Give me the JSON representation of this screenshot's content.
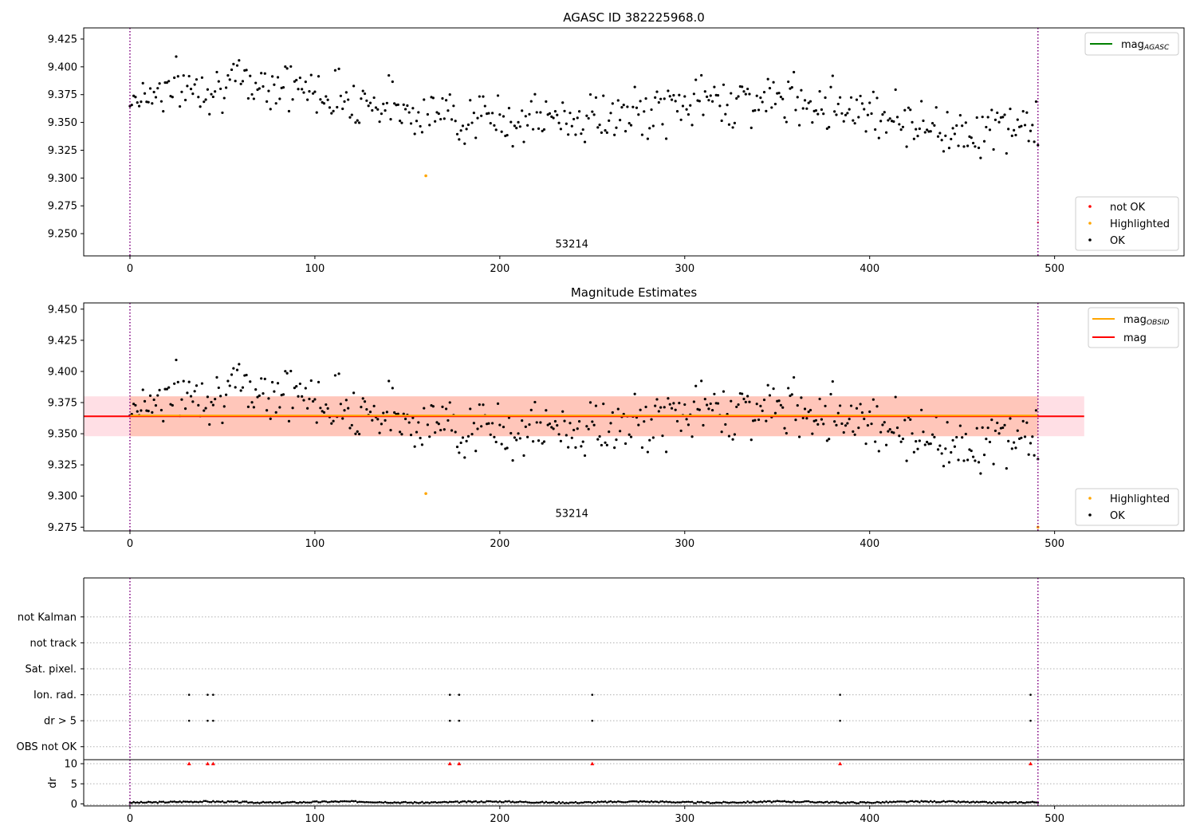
{
  "figure": {
    "panel1_title": "AGASC ID 382225968.0",
    "panel2_title": "Magnitude Estimates"
  },
  "chart_data": [
    {
      "type": "scatter",
      "title": "AGASC ID 382225968.0",
      "xlim": [
        -25,
        570
      ],
      "ylim": [
        9.23,
        9.435
      ],
      "xticks": [
        0,
        100,
        200,
        300,
        400,
        500
      ],
      "yticks": [
        9.25,
        9.275,
        9.3,
        9.325,
        9.35,
        9.375,
        9.4,
        9.425
      ],
      "vlines": [
        0,
        491
      ],
      "annotation": {
        "x": 245,
        "y": 9.236,
        "text": "53214"
      },
      "legend_lines": [
        {
          "label": "mag",
          "sub": "AGASC",
          "color": "#008000"
        }
      ],
      "legend_points": [
        {
          "label": "not OK",
          "color": "#ff0000"
        },
        {
          "label": "Highlighted",
          "color": "#ffa500"
        },
        {
          "label": "OK",
          "color": "#000000"
        }
      ],
      "highlighted": [
        {
          "x": 160,
          "y": 9.302
        }
      ],
      "not_ok": [
        {
          "x": 491,
          "y": 9.26
        }
      ]
    },
    {
      "type": "scatter",
      "title": "Magnitude Estimates",
      "xlim": [
        -25,
        570
      ],
      "ylim": [
        9.272,
        9.455
      ],
      "xticks": [
        0,
        100,
        200,
        300,
        400,
        500
      ],
      "yticks": [
        9.275,
        9.3,
        9.325,
        9.35,
        9.375,
        9.4,
        9.425,
        9.45
      ],
      "vlines": [
        0,
        491
      ],
      "annotation": {
        "x": 245,
        "y": 9.278,
        "text": "53214"
      },
      "mag_line": {
        "y": 9.364,
        "x0": -25,
        "x1": 516,
        "color": "#ff0000"
      },
      "mag_band": {
        "y0": 9.348,
        "y1": 9.38,
        "x0": -25,
        "x1": 516,
        "color": "#ffc0cb"
      },
      "mag_obsid_line": {
        "y": 9.364,
        "x0": 0,
        "x1": 491,
        "color": "#ffa500"
      },
      "mag_obsid_band": {
        "y0": 9.348,
        "y1": 9.38,
        "x0": 0,
        "x1": 491,
        "color": "#ffa07a"
      },
      "legend_lines": [
        {
          "label": "mag",
          "sub": "OBSID",
          "color": "#ffa500"
        },
        {
          "label": "mag",
          "sub": "",
          "color": "#ff0000"
        }
      ],
      "legend_points": [
        {
          "label": "Highlighted",
          "color": "#ffa500"
        },
        {
          "label": "OK",
          "color": "#000000"
        }
      ],
      "highlighted": [
        {
          "x": 160,
          "y": 9.302
        },
        {
          "x": 491,
          "y": 9.275
        }
      ]
    },
    {
      "type": "scatter",
      "title": "",
      "xlim": [
        -25,
        570
      ],
      "ylim": [
        -0.5,
        6.5
      ],
      "categories": [
        "OBS not OK",
        "dr > 5",
        "Ion. rad.",
        "Sat. pixel.",
        "not track",
        "not Kalman"
      ],
      "vlines": [
        0,
        491
      ],
      "flags": {
        "dr > 5": [
          32,
          42,
          45,
          173,
          178,
          250,
          384,
          487
        ],
        "Ion. rad.": [
          32,
          42,
          45,
          173,
          178,
          250,
          384,
          487
        ]
      }
    },
    {
      "type": "scatter",
      "title": "",
      "ylabel": "dr",
      "xlim": [
        -25,
        570
      ],
      "ylim": [
        -0.5,
        11
      ],
      "xticks": [
        0,
        100,
        200,
        300,
        400,
        500
      ],
      "yticks": [
        0,
        5,
        10
      ],
      "vlines": [
        0,
        491
      ],
      "dr_over_5": [
        32,
        42,
        45,
        173,
        178,
        250,
        384,
        487
      ]
    }
  ]
}
